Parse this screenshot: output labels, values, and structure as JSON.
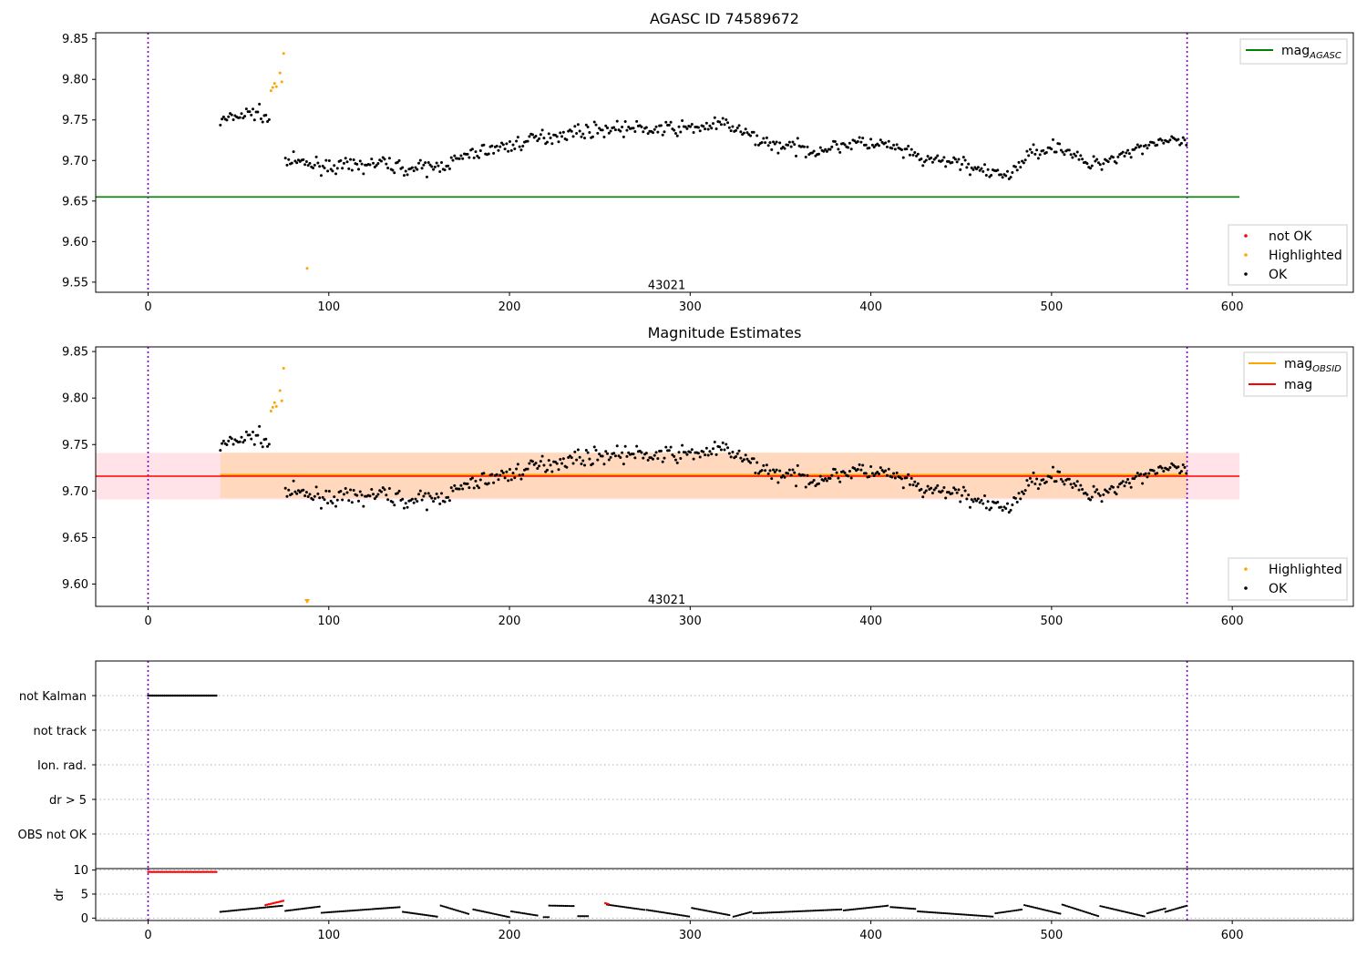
{
  "chart_data": [
    {
      "type": "scatter",
      "panel": "top",
      "title": "AGASC ID 74589672",
      "xlim": [
        -29,
        667
      ],
      "ylim": [
        9.5375,
        9.8575
      ],
      "xticks": [
        0,
        100,
        200,
        300,
        400,
        500,
        600
      ],
      "yticks": [
        9.55,
        9.6,
        9.65,
        9.7,
        9.75,
        9.8,
        9.85
      ],
      "vlines": [
        0,
        575
      ],
      "annotation": {
        "text": "43021",
        "x": 287,
        "y": 9.545
      },
      "hline": {
        "name": "mag_AGASC",
        "y": 9.655,
        "x": [
          -29,
          604
        ],
        "color": "#008000"
      },
      "highlighted_points": [
        [
          68,
          9.786
        ],
        [
          69,
          9.79
        ],
        [
          70,
          9.795
        ],
        [
          71,
          9.791
        ],
        [
          73,
          9.808
        ],
        [
          74,
          9.797
        ],
        [
          75,
          9.832
        ],
        [
          88,
          9.567
        ]
      ],
      "legend_lines": [
        {
          "label": "mag",
          "sub": "AGASC",
          "color": "#008000"
        }
      ],
      "legend_markers": [
        {
          "label": "not OK",
          "color": "#ff0000"
        },
        {
          "label": "Highlighted",
          "color": "#ffa500"
        },
        {
          "label": "OK",
          "color": "#000000"
        }
      ]
    },
    {
      "type": "scatter",
      "panel": "middle",
      "title": "Magnitude Estimates",
      "xlim": [
        -29,
        667
      ],
      "ylim": [
        9.576,
        9.855
      ],
      "xticks": [
        0,
        100,
        200,
        300,
        400,
        500,
        600
      ],
      "yticks": [
        9.6,
        9.65,
        9.7,
        9.75,
        9.8,
        9.85
      ],
      "vlines": [
        0,
        575
      ],
      "annotation": {
        "text": "43021",
        "x": 287,
        "y": 9.582
      },
      "mag_obsid": {
        "y": 9.7175,
        "band": [
          9.6925,
          9.7415
        ],
        "x": [
          40,
          575
        ],
        "color": "#ffa500"
      },
      "mag": {
        "y": 9.716,
        "band": [
          9.691,
          9.741
        ],
        "x": [
          -29,
          604
        ],
        "color": "#ff0000"
      },
      "highlighted_points": [
        [
          68,
          9.786
        ],
        [
          69,
          9.79
        ],
        [
          70,
          9.795
        ],
        [
          71,
          9.791
        ],
        [
          73,
          9.808
        ],
        [
          74,
          9.797
        ],
        [
          75,
          9.832
        ]
      ],
      "clipped_marker": {
        "x": 88,
        "color": "#ffa500"
      },
      "legend_lines": [
        {
          "label": "mag",
          "sub": "OBSID",
          "color": "#ffa500"
        },
        {
          "label": "mag",
          "sub": "",
          "color": "#ff0000"
        }
      ],
      "legend_markers": [
        {
          "label": "Highlighted",
          "color": "#ffa500"
        },
        {
          "label": "OK",
          "color": "#000000"
        }
      ]
    },
    {
      "type": "scatter",
      "panel": "flags",
      "xlim": [
        -29,
        667
      ],
      "categories": [
        "not Kalman",
        "not track",
        "Ion. rad.",
        "dr > 5",
        "OBS not OK"
      ],
      "vlines": [
        0,
        575
      ],
      "flag_ranges": [
        {
          "flag": "not Kalman",
          "x": [
            0,
            38
          ]
        }
      ]
    },
    {
      "type": "scatter",
      "panel": "dr",
      "ylabel": "dr",
      "xlim": [
        -29,
        667
      ],
      "ylim": [
        -0.5,
        10.3
      ],
      "xticks": [
        0,
        100,
        200,
        300,
        400,
        500,
        600
      ],
      "yticks": [
        0,
        5,
        10
      ],
      "vlines": [
        0,
        575
      ],
      "red_segments": [
        {
          "x": [
            0,
            38
          ],
          "y": [
            9.6,
            9.6
          ]
        },
        {
          "x": [
            65,
            75
          ],
          "y": [
            2.7,
            3.6
          ]
        },
        {
          "x": [
            253,
            255
          ],
          "y": [
            3.1,
            2.9
          ]
        }
      ]
    }
  ]
}
